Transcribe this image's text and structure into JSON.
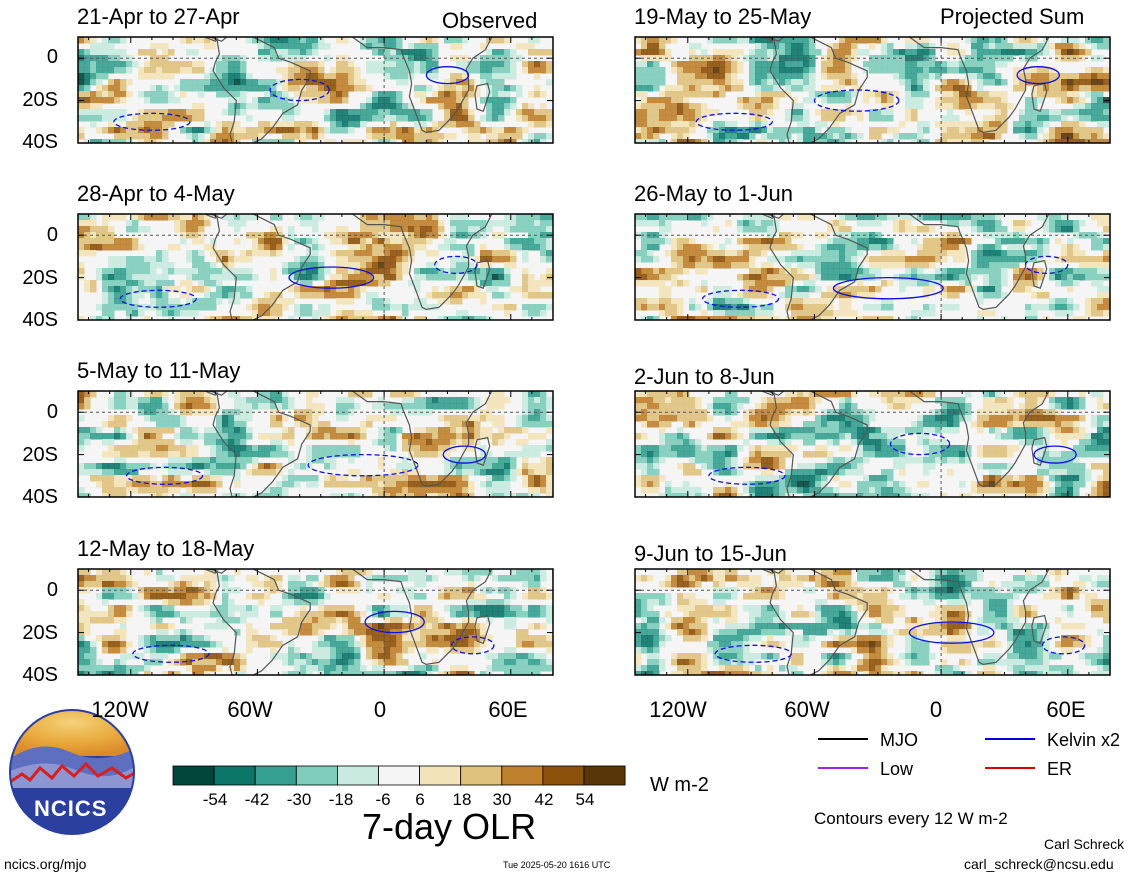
{
  "chart_data": {
    "type": "heatmap",
    "variable": "7-day OLR",
    "units": "W m-2",
    "headers": {
      "left": "Observed",
      "right": "Projected Sum"
    },
    "x_ticks": [
      "120W",
      "60W",
      "0",
      "60E"
    ],
    "y_ticks": [
      "0",
      "20S",
      "40S"
    ],
    "x_range": [
      -145,
      80
    ],
    "y_range": [
      10,
      -40
    ],
    "colorbar": {
      "ticks": [
        "-54",
        "-42",
        "-30",
        "-18",
        "-6",
        "6",
        "18",
        "30",
        "42",
        "54"
      ],
      "colors": [
        "#01463a",
        "#0c7669",
        "#35a08f",
        "#7fcdbb",
        "#c8eadf",
        "#f5f5f5",
        "#f3e3b8",
        "#dfc27d",
        "#bf812d",
        "#8c510a",
        "#5a3507"
      ]
    },
    "contour_interval": "Contours every 12 W m-2",
    "contour_legend": [
      {
        "label": "MJO",
        "color": "#000000"
      },
      {
        "label": "Kelvin x2",
        "color": "#0000dd"
      },
      {
        "label": "Low",
        "color": "#a020f0"
      },
      {
        "label": "ER",
        "color": "#dd0000"
      }
    ],
    "panels": [
      {
        "title": "21-Apr to 27-Apr",
        "group": "Observed"
      },
      {
        "title": "28-Apr to 4-May",
        "group": "Observed"
      },
      {
        "title": "5-May to 11-May",
        "group": "Observed"
      },
      {
        "title": "12-May to 18-May",
        "group": "Observed"
      },
      {
        "title": "19-May to 25-May",
        "group": "Projected Sum"
      },
      {
        "title": "26-May to 1-Jun",
        "group": "Projected Sum"
      },
      {
        "title": "2-Jun to 8-Jun",
        "group": "Projected Sum"
      },
      {
        "title": "9-Jun to 15-Jun",
        "group": "Projected Sum"
      }
    ]
  },
  "logo_text": "NCICS",
  "footer": {
    "url": "ncics.org/mjo",
    "timestamp": "Tue 2025-05-20 1616 UTC",
    "author": "Carl Schreck",
    "email": "carl_schreck@ncsu.edu"
  }
}
